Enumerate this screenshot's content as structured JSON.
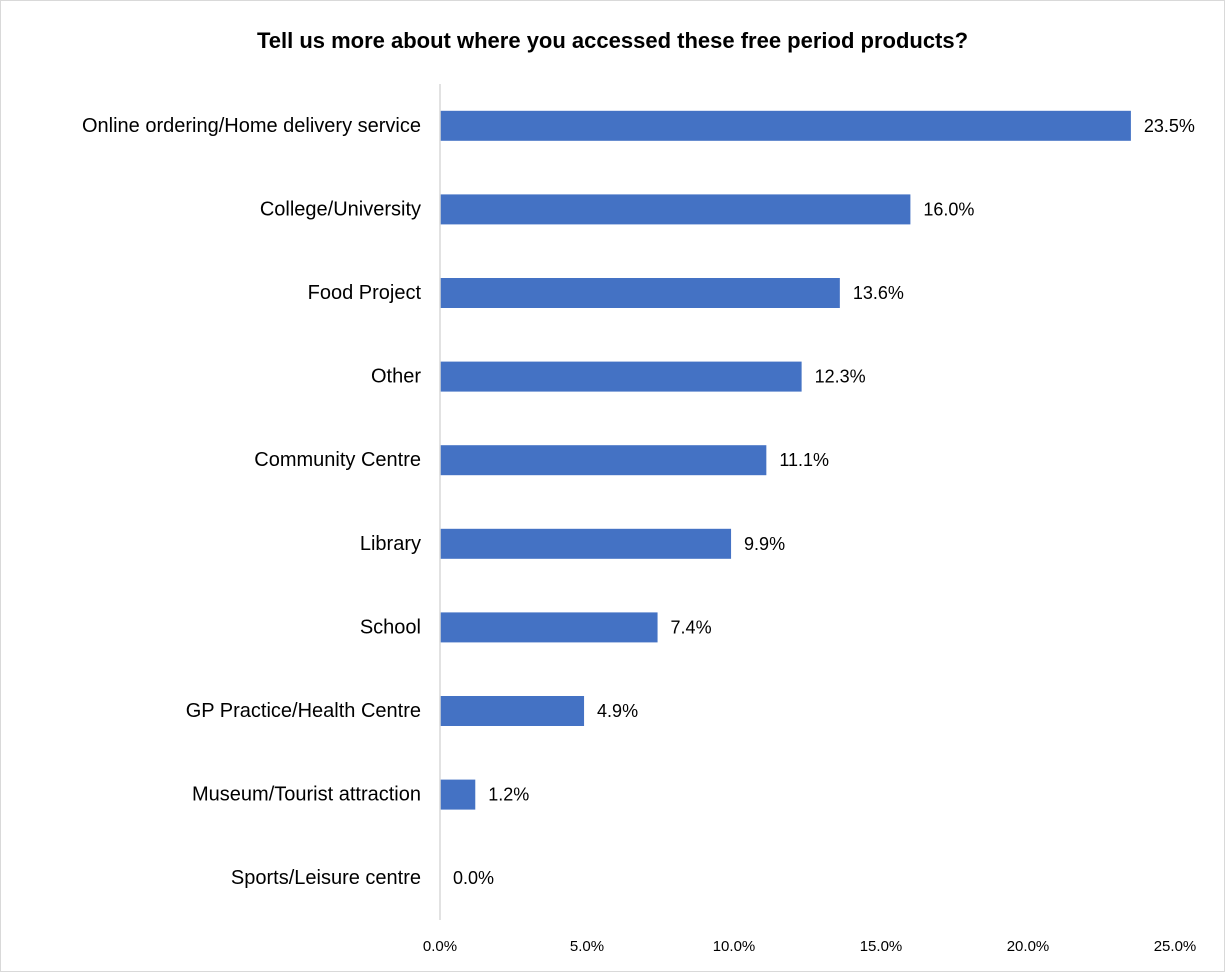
{
  "chart_data": {
    "type": "bar",
    "orientation": "horizontal",
    "title": "Tell us more about where you accessed these free period products?",
    "categories": [
      "Online ordering/Home delivery service",
      "College/University",
      "Food Project",
      "Other",
      "Community Centre",
      "Library",
      "School",
      "GP Practice/Health Centre",
      "Museum/Tourist attraction",
      "Sports/Leisure centre"
    ],
    "values": [
      23.5,
      16.0,
      13.6,
      12.3,
      11.1,
      9.9,
      7.4,
      4.9,
      1.2,
      0.0
    ],
    "data_labels": [
      "23.5%",
      "16.0%",
      "13.6%",
      "12.3%",
      "11.1%",
      "9.9%",
      "7.4%",
      "4.9%",
      "1.2%",
      "0.0%"
    ],
    "xlim": [
      0,
      25
    ],
    "x_ticks": [
      "0.0%",
      "5.0%",
      "10.0%",
      "15.0%",
      "20.0%",
      "25.0%"
    ],
    "xlabel": "",
    "ylabel": "",
    "grid": false,
    "legend": "none",
    "bar_color": "#4472C4"
  }
}
